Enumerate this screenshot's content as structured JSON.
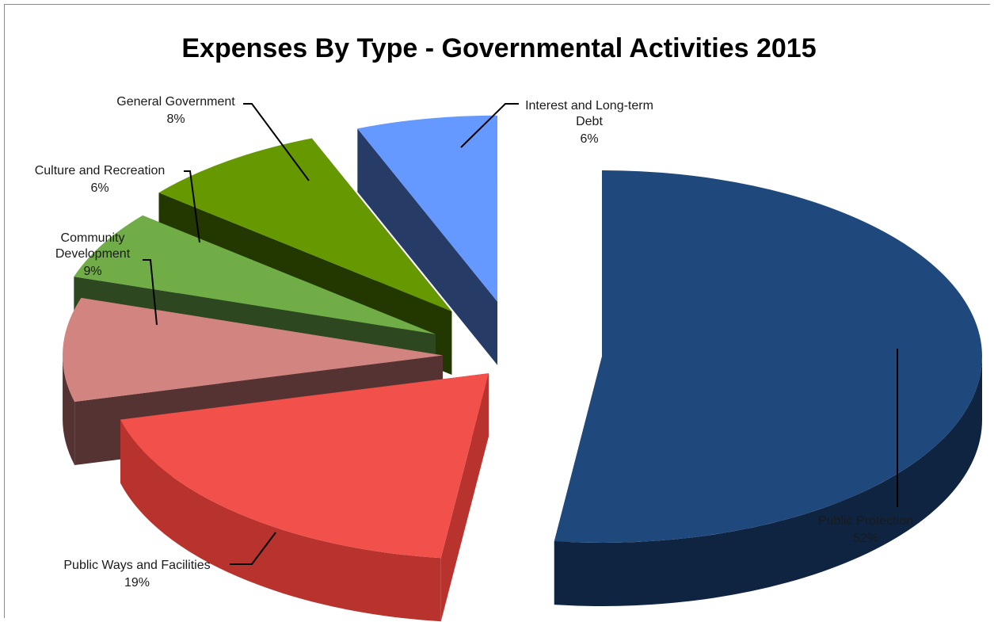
{
  "chart_data": {
    "type": "pie",
    "title": "Expenses By Type - Governmental Activities 2015",
    "slices": [
      {
        "label": "Public Protection",
        "value_label": "52%",
        "value": 52,
        "color": "#1F497D",
        "side_color": "#0F2441"
      },
      {
        "label": "Public Ways and Facilities",
        "value_label": "19%",
        "value": 19,
        "color": "#F2504B",
        "side_color": "#B8322E"
      },
      {
        "label": "Community Development",
        "value_label": "9%",
        "value": 9,
        "color": "#D28580",
        "side_color": "#553333"
      },
      {
        "label": "Culture and Recreation",
        "value_label": "6%",
        "value": 6,
        "color": "#70AD47",
        "side_color": "#2D4720"
      },
      {
        "label": "General Government",
        "value_label": "8%",
        "value": 8,
        "color": "#669900",
        "side_color": "#223800"
      },
      {
        "label": "Interest and Long-term Debt",
        "value_label": "6%",
        "value": 6,
        "color": "#6699FF",
        "side_color": "#263B66"
      }
    ],
    "legend": "none",
    "style": "3d-exploded-pie"
  }
}
